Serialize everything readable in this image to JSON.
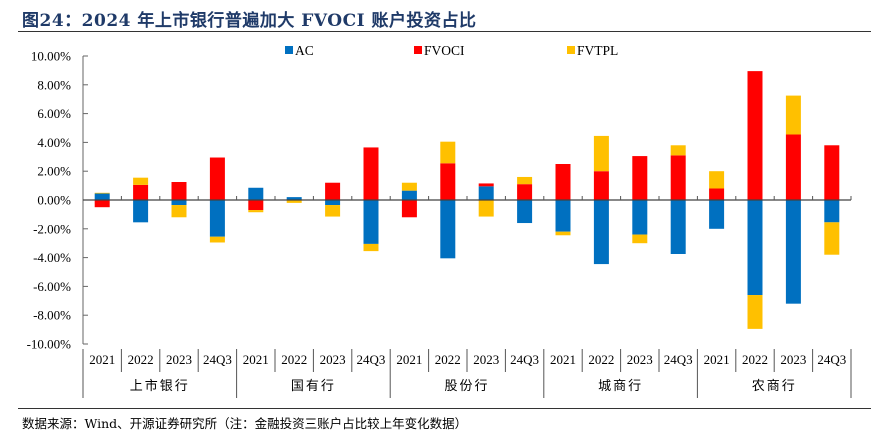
{
  "figure": {
    "title": "图24：2024 年上市银行普遍加大 FVOCI 账户投资占比",
    "source_note": "数据来源：Wind、开源证券研究所（注：金融投资三账户占比较上年变化数据）"
  },
  "chart_data": {
    "type": "bar",
    "stacked": true,
    "title": "",
    "xlabel": "",
    "ylabel": "",
    "ylim": [
      -10,
      10
    ],
    "yticks": [
      10,
      8,
      6,
      4,
      2,
      0,
      -2,
      -4,
      -6,
      -8,
      -10
    ],
    "ytick_labels": [
      "10.00%",
      "8.00%",
      "6.00%",
      "4.00%",
      "2.00%",
      "0.00%",
      "-2.00%",
      "-4.00%",
      "-6.00%",
      "-8.00%",
      "-10.00%"
    ],
    "unit": "%",
    "grid": false,
    "legend_position": "top",
    "groups": [
      {
        "name": "上市银行",
        "categories": [
          "2021",
          "2022",
          "2023",
          "24Q3"
        ]
      },
      {
        "name": "国有行",
        "categories": [
          "2021",
          "2022",
          "2023",
          "24Q3"
        ]
      },
      {
        "name": "股份行",
        "categories": [
          "2021",
          "2022",
          "2023",
          "24Q3"
        ]
      },
      {
        "name": "城商行",
        "categories": [
          "2021",
          "2022",
          "2023",
          "24Q3"
        ]
      },
      {
        "name": "农商行",
        "categories": [
          "2021",
          "2022",
          "2023",
          "24Q3"
        ]
      }
    ],
    "categories": [
      "上市银行-2021",
      "上市银行-2022",
      "上市银行-2023",
      "上市银行-24Q3",
      "国有行-2021",
      "国有行-2022",
      "国有行-2023",
      "国有行-24Q3",
      "股份行-2021",
      "股份行-2022",
      "股份行-2023",
      "股份行-24Q3",
      "城商行-2021",
      "城商行-2022",
      "城商行-2023",
      "城商行-24Q3",
      "农商行-2021",
      "农商行-2022",
      "农商行-2023",
      "农商行-24Q3"
    ],
    "series": [
      {
        "name": "AC",
        "color": "#0070c0",
        "values": [
          0.45,
          -1.55,
          -0.35,
          -2.55,
          0.85,
          0.2,
          -0.35,
          -3.05,
          0.65,
          -4.05,
          0.95,
          -1.6,
          -2.2,
          -4.45,
          -2.4,
          -3.75,
          -2.0,
          -6.6,
          -7.2,
          -1.55
        ]
      },
      {
        "name": "FVOCI",
        "color": "#ff0000",
        "values": [
          -0.5,
          1.05,
          1.25,
          2.95,
          -0.7,
          0.0,
          1.2,
          3.65,
          -1.2,
          2.55,
          0.2,
          1.1,
          2.5,
          2.0,
          3.05,
          3.1,
          0.8,
          8.95,
          4.55,
          3.8
        ]
      },
      {
        "name": "FVTPL",
        "color": "#ffc000",
        "values": [
          0.05,
          0.5,
          -0.85,
          -0.4,
          -0.15,
          -0.2,
          -0.8,
          -0.5,
          0.55,
          1.5,
          -1.15,
          0.5,
          -0.25,
          2.45,
          -0.6,
          0.7,
          1.2,
          -2.35,
          2.7,
          -2.25
        ]
      }
    ]
  }
}
